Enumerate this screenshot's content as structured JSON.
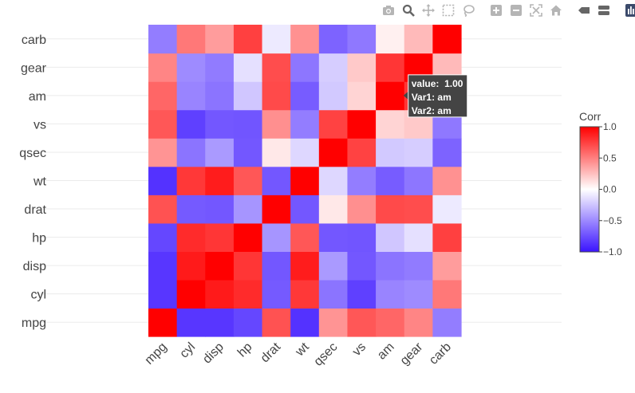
{
  "modebar": {
    "buttons": [
      "camera-icon",
      "zoom-icon",
      "pan-icon",
      "box-select-icon",
      "lasso-select-icon",
      "zoom-in-icon",
      "zoom-out-icon",
      "autoscale-icon",
      "reset-axes-icon",
      "spike-lines-icon",
      "compare-hover-icon",
      "plotly-logo-icon"
    ]
  },
  "colors": {
    "low": "#3A13FF",
    "mid": "#FFFFFF",
    "high": "#FF0000"
  },
  "chart_data": {
    "type": "heatmap",
    "variables": [
      "mpg",
      "cyl",
      "disp",
      "hp",
      "drat",
      "wt",
      "qsec",
      "vs",
      "am",
      "gear",
      "carb"
    ],
    "z": [
      [
        1.0,
        -0.85,
        -0.85,
        -0.78,
        0.68,
        -0.87,
        0.42,
        0.66,
        0.6,
        0.48,
        -0.55
      ],
      [
        -0.85,
        1.0,
        0.9,
        0.83,
        -0.7,
        0.78,
        -0.59,
        -0.81,
        -0.52,
        -0.49,
        0.53
      ],
      [
        -0.85,
        0.9,
        1.0,
        0.79,
        -0.71,
        0.89,
        -0.43,
        -0.71,
        -0.59,
        -0.56,
        0.39
      ],
      [
        -0.78,
        0.83,
        0.79,
        1.0,
        -0.45,
        0.66,
        -0.71,
        -0.72,
        -0.24,
        -0.13,
        0.75
      ],
      [
        0.68,
        -0.7,
        -0.71,
        -0.45,
        1.0,
        -0.71,
        0.09,
        0.44,
        0.71,
        0.7,
        -0.09
      ],
      [
        -0.87,
        0.78,
        0.89,
        0.66,
        -0.71,
        1.0,
        -0.17,
        -0.55,
        -0.69,
        -0.58,
        0.43
      ],
      [
        0.42,
        -0.59,
        -0.43,
        -0.71,
        0.09,
        -0.17,
        1.0,
        0.74,
        -0.23,
        -0.21,
        -0.66
      ],
      [
        0.66,
        -0.81,
        -0.71,
        -0.72,
        0.44,
        -0.55,
        0.74,
        1.0,
        0.17,
        0.21,
        -0.57
      ],
      [
        0.6,
        -0.52,
        -0.59,
        -0.24,
        0.71,
        -0.69,
        -0.23,
        0.17,
        1.0,
        0.79,
        0.06
      ],
      [
        0.48,
        -0.49,
        -0.56,
        -0.13,
        0.7,
        -0.58,
        -0.21,
        0.21,
        0.79,
        1.0,
        0.27
      ],
      [
        -0.55,
        0.53,
        0.39,
        0.75,
        -0.09,
        0.43,
        -0.66,
        -0.57,
        0.06,
        0.27,
        1.0
      ]
    ],
    "zlim": [
      -1.0,
      1.0
    ],
    "colorbar": {
      "title": "Corr",
      "ticks": [
        1.0,
        0.5,
        0.0,
        -0.5,
        -1.0
      ],
      "tick_labels": [
        "1.0",
        "0.5",
        "0.0",
        "−0.5",
        "−1.0"
      ]
    },
    "tooltip": {
      "lines": [
        "value:  1.00",
        "Var1: am",
        "Var2: am"
      ],
      "var1": "am",
      "var2": "am"
    }
  }
}
